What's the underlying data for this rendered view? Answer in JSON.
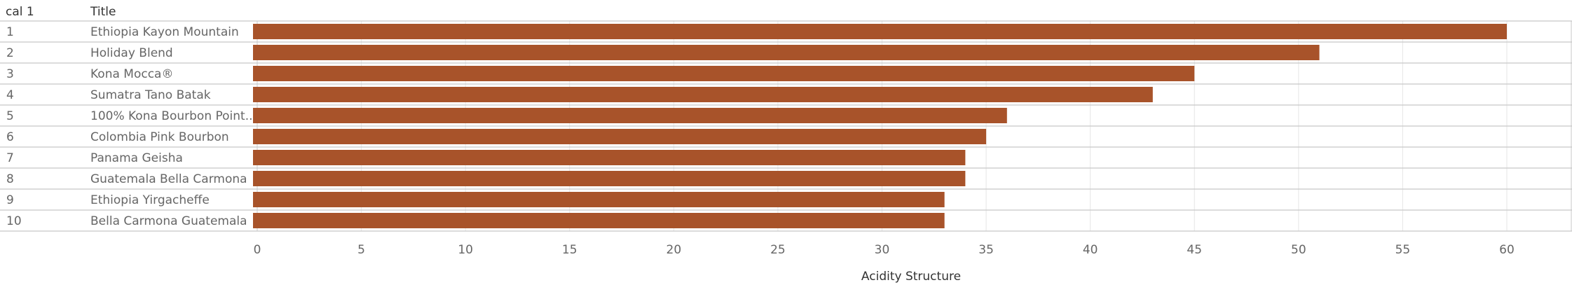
{
  "columns": {
    "rank": "cal 1",
    "title": "Title"
  },
  "colors": {
    "bar": "#a8532a",
    "grid": "#e6e6e6",
    "row_border": "#c8c8c8",
    "text": "#666666",
    "axis_label": "#333333"
  },
  "chart_data": {
    "type": "bar",
    "orientation": "horizontal",
    "ranks": [
      "1",
      "2",
      "3",
      "4",
      "5",
      "6",
      "7",
      "8",
      "9",
      "10"
    ],
    "categories": [
      "Ethiopia Kayon Mountain",
      "Holiday Blend",
      "Kona Mocca®",
      "Sumatra Tano Batak",
      "100% Kona Bourbon Point..",
      "Colombia Pink Bourbon",
      "Panama Geisha",
      "Guatemala Bella Carmona",
      "Ethiopia Yirgacheffe",
      "Bella Carmona Guatemala"
    ],
    "values": [
      60,
      51,
      45,
      43,
      36,
      35,
      34,
      34,
      33,
      33
    ],
    "xlabel": "Acidity Structure",
    "xlim": [
      0,
      63
    ],
    "xticks": [
      0,
      5,
      10,
      15,
      20,
      25,
      30,
      35,
      40,
      45,
      50,
      55,
      60
    ],
    "grid": true,
    "legend": "none"
  }
}
